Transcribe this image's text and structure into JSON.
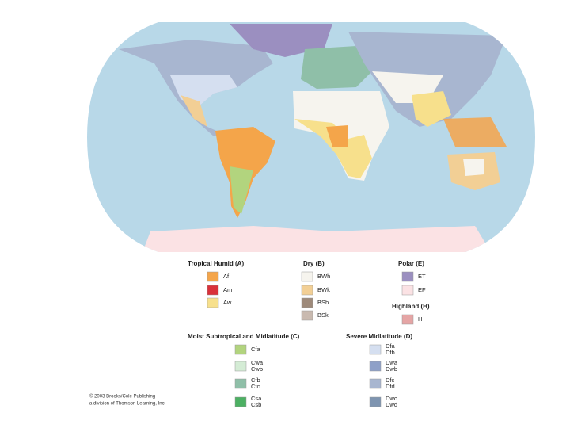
{
  "legend": [
    {
      "title": "Tropical Humid (A)",
      "items": [
        {
          "codes": [
            "Af"
          ],
          "color": "#f4a54a"
        },
        {
          "codes": [
            "Am"
          ],
          "color": "#d9313a"
        },
        {
          "codes": [
            "Aw"
          ],
          "color": "#f7e08c"
        }
      ]
    },
    {
      "title": "Dry (B)",
      "items": [
        {
          "codes": [
            "BWh"
          ],
          "color": "#f6f4ee"
        },
        {
          "codes": [
            "BWk"
          ],
          "color": "#f2cf95"
        },
        {
          "codes": [
            "BSh"
          ],
          "color": "#9e8a7a"
        },
        {
          "codes": [
            "BSk"
          ],
          "color": "#c9bab0"
        }
      ]
    },
    {
      "title": "Polar (E)",
      "items": [
        {
          "codes": [
            "ET"
          ],
          "color": "#9b8fc0"
        },
        {
          "codes": [
            "EF"
          ],
          "color": "#fbe2e4"
        }
      ]
    },
    {
      "title": "Highland (H)",
      "items": [
        {
          "codes": [
            "H"
          ],
          "color": "#e5a5a5"
        }
      ]
    },
    {
      "title": "Moist Subtropical and Midlatitude (C)",
      "items": [
        {
          "codes": [
            "Cfa"
          ],
          "color": "#b2d47e"
        },
        {
          "codes": [
            "Cwa",
            "Cwb"
          ],
          "color": "#d4ecd5"
        },
        {
          "codes": [
            "Cfb",
            "Cfc"
          ],
          "color": "#8fbfa8"
        },
        {
          "codes": [
            "Csa",
            "Csb"
          ],
          "color": "#4cb063"
        }
      ]
    },
    {
      "title": "Severe Midlatitude (D)",
      "items": [
        {
          "codes": [
            "Dfa",
            "Dfb"
          ],
          "color": "#d5dff0"
        },
        {
          "codes": [
            "Dwa",
            "Dwb"
          ],
          "color": "#8ea0c8"
        },
        {
          "codes": [
            "Dfc",
            "Dfd"
          ],
          "color": "#a8b6d0"
        },
        {
          "codes": [
            "Dwc",
            "Dwd"
          ],
          "color": "#7e94b0"
        }
      ]
    }
  ],
  "credit": [
    "© 2003 Brooks/Cole Publishing",
    "a division of Thomson Learning, Inc."
  ]
}
